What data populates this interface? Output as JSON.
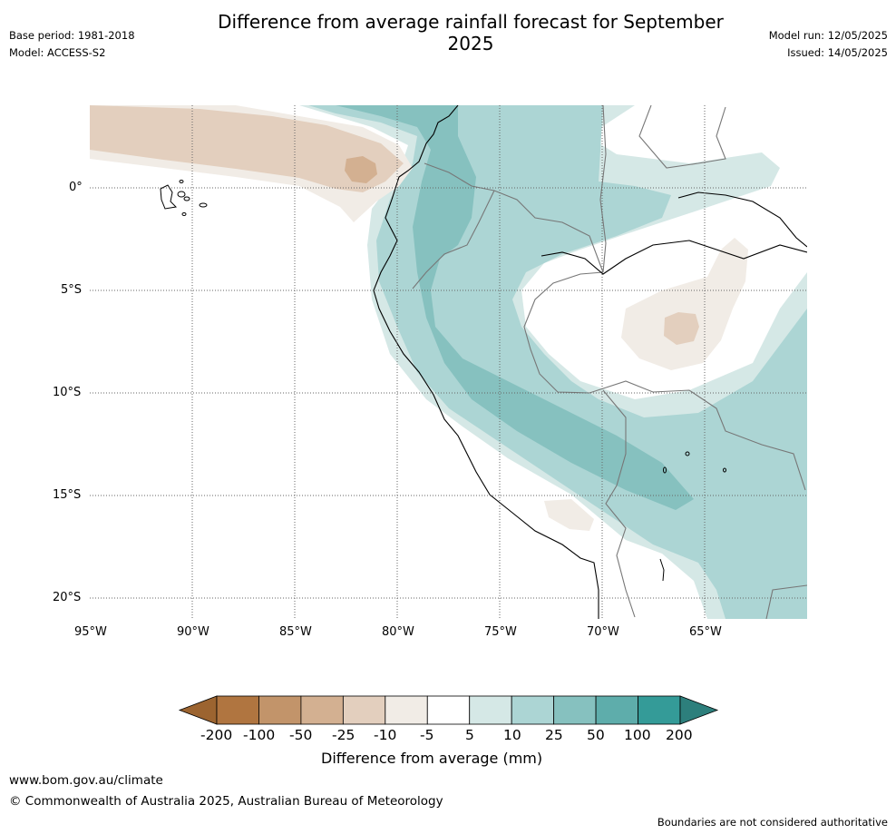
{
  "header": {
    "title": "Difference from average rainfall forecast for September 2025",
    "base_period": "Base period: 1981-2018",
    "model": "Model: ACCESS-S2",
    "model_run": "Model run: 12/05/2025",
    "issued": "Issued: 14/05/2025"
  },
  "map": {
    "region": "Western South America",
    "lat_labels": [
      "0°",
      "5°S",
      "10°S",
      "15°S",
      "20°S"
    ],
    "lon_labels": [
      "95°W",
      "90°W",
      "85°W",
      "80°W",
      "75°W",
      "70°W",
      "65°W"
    ],
    "grid": "dotted"
  },
  "colorbar": {
    "label": "Difference from average (mm)",
    "ticks": [
      "-200",
      "-100",
      "-50",
      "-25",
      "-10",
      "-5",
      "5",
      "10",
      "25",
      "50",
      "100",
      "200"
    ],
    "colors": [
      "#9c6430",
      "#b07540",
      "#c2946a",
      "#d3b091",
      "#e3cfbe",
      "#f1ece6",
      "#ffffff",
      "#d5e8e6",
      "#acd5d4",
      "#86c1bf",
      "#5eadab",
      "#349b98",
      "#2d7f7c"
    ]
  },
  "footer": {
    "website": "www.bom.gov.au/climate",
    "copyright": "© Commonwealth of Australia 2025, Australian Bureau of Meteorology",
    "disclaimer": "Boundaries are not considered authoritative"
  }
}
